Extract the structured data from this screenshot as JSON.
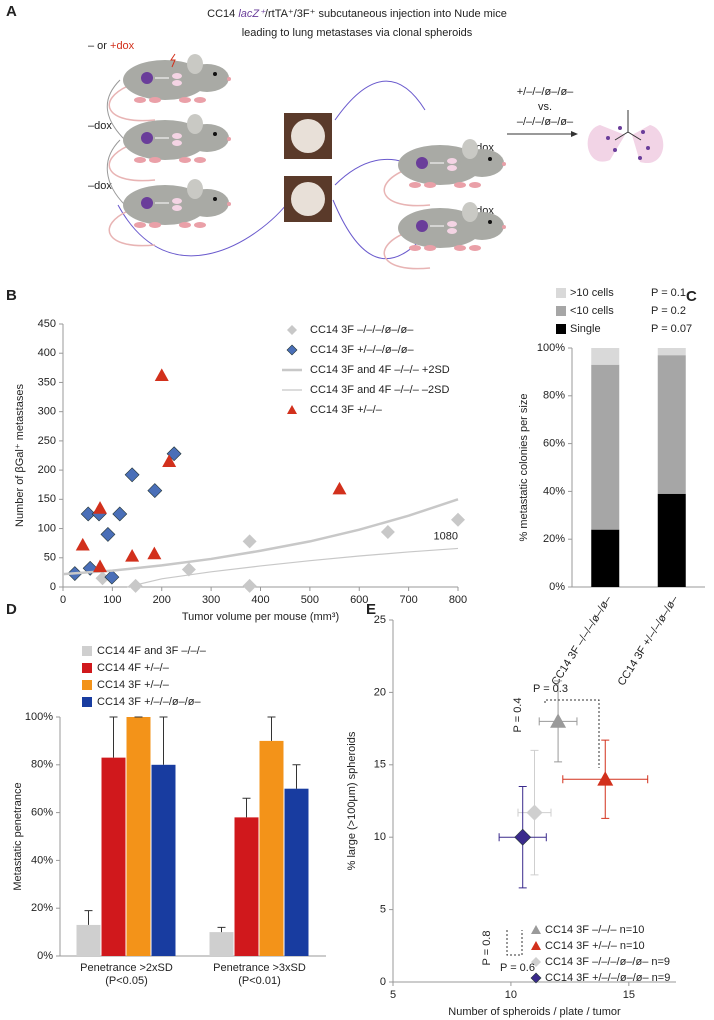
{
  "diagram": {
    "label": "A",
    "title": {
      "prefix": "CC14 ",
      "gene": "lacZ⁺",
      "suffix": "/rtTA⁺/3F⁺ subcutaneous injection into Nude mice"
    },
    "subtitle": "leading to lung metastases via clonal spheroids",
    "left_labels": [
      "– or ",
      "+dox",
      "–dox",
      "–dox"
    ],
    "right_labels": [
      "–dox",
      "–dox"
    ],
    "comparison": [
      "+/–/–/ø–/ø–",
      "vs.",
      "–/–/–/ø–/ø–"
    ]
  },
  "chart_data": [
    {
      "type": "scatter",
      "label": "B",
      "xlabel": "Tumor volume per mouse (mm³)",
      "ylabel": "Number of βGal⁺ metastases",
      "xlim": [
        0,
        800
      ],
      "ylim": [
        0,
        450
      ],
      "xticks": [
        0,
        100,
        200,
        300,
        400,
        500,
        600,
        700,
        800
      ],
      "yticks": [
        0,
        50,
        100,
        150,
        200,
        250,
        300,
        350,
        400,
        450
      ],
      "series": [
        {
          "name": "CC14 3F –/–/–/ø–/ø–",
          "marker": "diamond",
          "color": "#c8c8c8",
          "x": [
            80,
            147,
            255,
            378,
            378,
            658,
            800
          ],
          "values": [
            15,
            2,
            30,
            78,
            2,
            94,
            115
          ],
          "annotation": "1080"
        },
        {
          "name": "CC14 3F +/–/–/ø–/ø–",
          "marker": "diamond",
          "color": "#4a6fb8",
          "x": [
            24,
            55,
            51,
            73,
            91,
            99,
            115,
            140,
            186,
            225
          ],
          "values": [
            23,
            32,
            125,
            125,
            90,
            17,
            125,
            192,
            165,
            228
          ]
        },
        {
          "name": "CC14 3F and 4F –/–/– +2SD",
          "marker": "line",
          "color": "#c8c8c8",
          "width": 2.5,
          "x": [
            0,
            100,
            200,
            300,
            400,
            500,
            600,
            700,
            800
          ],
          "values": [
            22,
            28,
            37,
            48,
            62,
            78,
            98,
            122,
            150
          ]
        },
        {
          "name": "CC14 3F and 4F –/–/– –2SD",
          "marker": "line",
          "color": "#c8c8c8",
          "width": 1.2,
          "x": [
            130,
            200,
            300,
            400,
            500,
            600,
            700,
            800
          ],
          "values": [
            0,
            14,
            26,
            36,
            45,
            53,
            60,
            66
          ]
        },
        {
          "name": "CC14 3F +/–/–",
          "marker": "triangle",
          "color": "#d2301c",
          "x": [
            40,
            75,
            75,
            140,
            185,
            200,
            215,
            560
          ],
          "values": [
            72,
            35,
            135,
            53,
            57,
            362,
            215,
            168
          ]
        }
      ]
    },
    {
      "type": "bar",
      "stacked": true,
      "label": "C",
      "ylabel": "% metastatic colonies per size",
      "categories": [
        "CC14 3F –/–/–/ø–/ø–",
        "CC14 3F +/–/–/ø–/ø–"
      ],
      "ylim": [
        0,
        100
      ],
      "yticks": [
        {
          "value": 0,
          "label": "0%"
        },
        {
          "value": 20,
          "label": "20%"
        },
        {
          "value": 40,
          "label": "40%"
        },
        {
          "value": 60,
          "label": "60%"
        },
        {
          "value": 80,
          "label": "80%"
        },
        {
          "value": 100,
          "label": "100%"
        }
      ],
      "series": [
        {
          "name": "Single",
          "color": "#000000",
          "values": [
            24,
            39
          ],
          "p_label": "P = 0.07",
          "p_color": "#000000"
        },
        {
          "name": "<10 cells",
          "color": "#a6a6a6",
          "values": [
            69,
            58
          ],
          "p_label": "P = 0.2",
          "p_color": "#a6a6a6"
        },
        {
          "name": ">10 cells",
          "color": "#d9d9d9",
          "values": [
            7,
            3
          ],
          "p_label": "P = 0.1",
          "p_color": "#c8c8c8"
        }
      ]
    },
    {
      "type": "bar",
      "label": "D",
      "ylabel": "Metastatic penetrance",
      "categories": [
        "Penetrance >2xSD",
        "Penetrance >3xSD"
      ],
      "category_notes": [
        "(P<0.05)",
        "(P<0.01)"
      ],
      "ylim": [
        0,
        100
      ],
      "yticks": [
        {
          "value": 0,
          "label": "0%"
        },
        {
          "value": 20,
          "label": "20%"
        },
        {
          "value": 40,
          "label": "40%"
        },
        {
          "value": 60,
          "label": "60%"
        },
        {
          "value": 80,
          "label": "80%"
        },
        {
          "value": 100,
          "label": "100%"
        }
      ],
      "series": [
        {
          "name": "CC14 4F and 3F –/–/–",
          "color": "#cfcfcf",
          "values": [
            13,
            10
          ],
          "errors": [
            6,
            2
          ]
        },
        {
          "name": "CC14 4F +/–/–",
          "color": "#d0181c",
          "values": [
            83,
            58
          ],
          "errors": [
            17,
            8
          ]
        },
        {
          "name": "CC14 3F +/–/–",
          "color": "#f39319",
          "values": [
            100,
            90
          ],
          "errors": [
            0,
            10
          ]
        },
        {
          "name": "CC14 3F +/–/–/ø–/ø–",
          "color": "#183ca0",
          "values": [
            80,
            70
          ],
          "errors": [
            20,
            10
          ]
        }
      ]
    },
    {
      "type": "errorscatter",
      "label": "E",
      "xlabel": "Number of spheroids / plate / tumor",
      "ylabel": "% large (>100μm) spheroids",
      "xlim": [
        5,
        17
      ],
      "ylim": [
        0,
        25
      ],
      "xticks": [
        5,
        10,
        15
      ],
      "yticks": [
        0,
        5,
        10,
        15,
        20,
        25
      ],
      "series": [
        {
          "name": "CC14 3F –/–/– n=10",
          "marker": "triangle",
          "color": "#9a9a9a",
          "x": [
            12
          ],
          "values": [
            18
          ],
          "xerr": [
            0.8
          ],
          "yerr": [
            2.8
          ]
        },
        {
          "name": "CC14 3F +/–/– n=10",
          "marker": "triangle",
          "color": "#d2301c",
          "x": [
            14
          ],
          "values": [
            14
          ],
          "xerr": [
            1.8
          ],
          "yerr": [
            2.7
          ]
        },
        {
          "name": "CC14 3F –/–/–/ø–/ø– n=9",
          "marker": "diamond",
          "color": "#cfcfcf",
          "x": [
            11
          ],
          "values": [
            11.7
          ],
          "xerr": [
            0.7
          ],
          "yerr": [
            4.3
          ]
        },
        {
          "name": "CC14 3F +/–/–/ø–/ø– n=9",
          "marker": "diamond",
          "color": "#3a2a8c",
          "x": [
            10.5
          ],
          "values": [
            10
          ],
          "xerr": [
            1
          ],
          "yerr": [
            3.5
          ]
        }
      ],
      "annotations": [
        {
          "text": "P = 0.3",
          "color": "#d2301c"
        },
        {
          "text": "P = 0.4",
          "color": "#d2301c"
        },
        {
          "text": "P = 0.8",
          "color": "#3a2a9c"
        },
        {
          "text": "P = 0.6",
          "color": "#3a2a9c"
        }
      ]
    }
  ]
}
